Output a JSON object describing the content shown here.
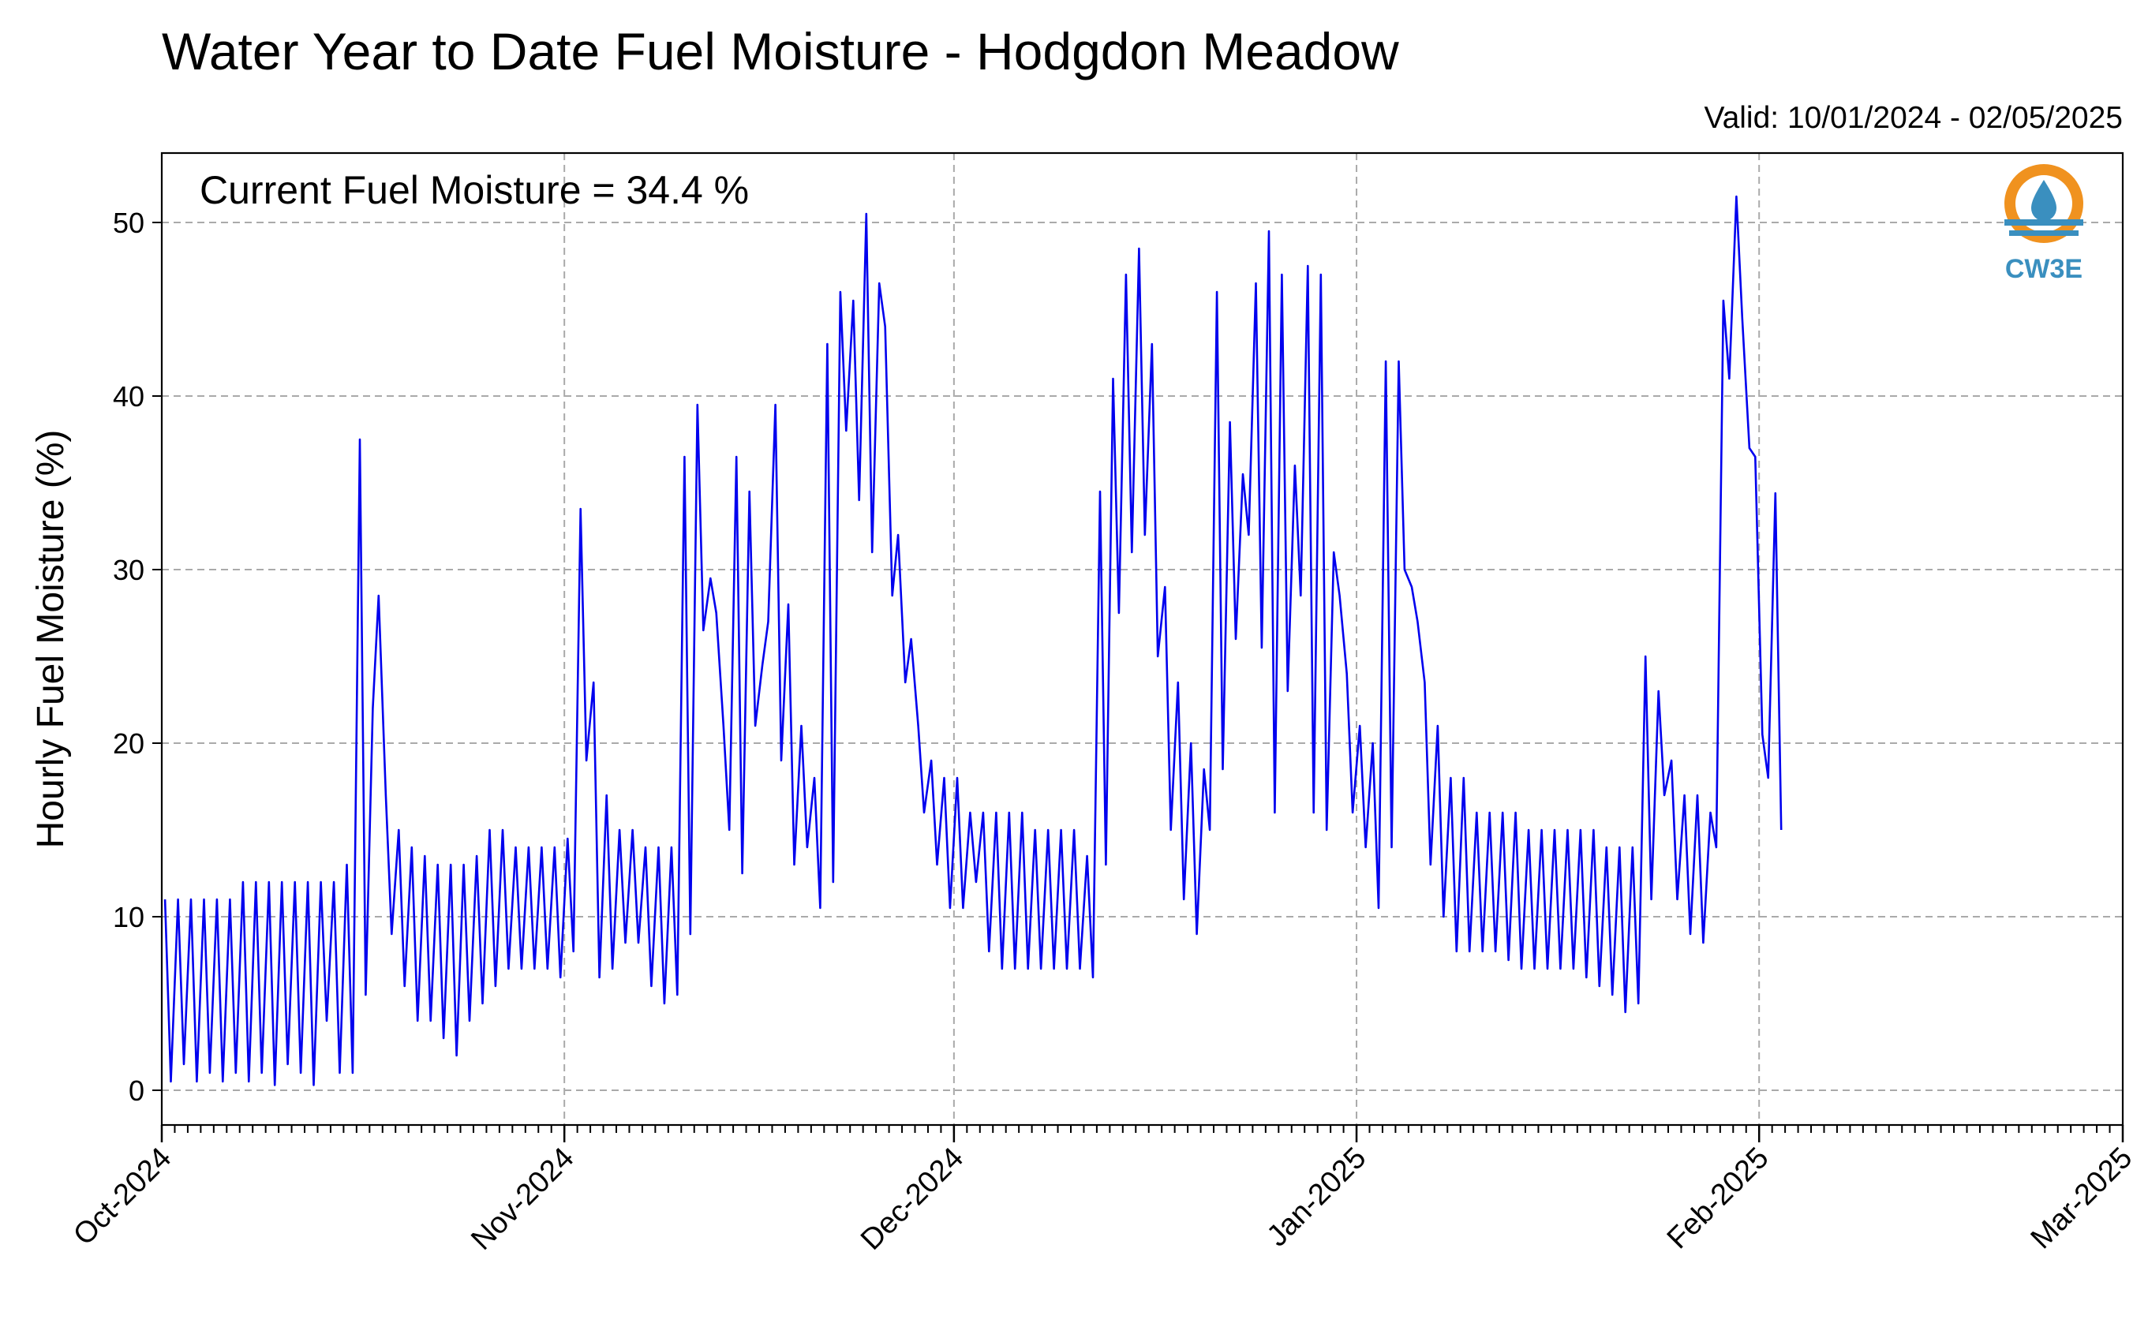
{
  "chart_data": {
    "type": "line",
    "title": "Water Year to Date Fuel Moisture - Hodgdon Meadow",
    "subtitle": "Valid: 10/01/2024 - 02/05/2025",
    "annotation": "Current Fuel Moisture = 34.4 %",
    "xlabel": "",
    "ylabel": "Hourly Fuel Moisture (%)",
    "ylim": [
      -2,
      54
    ],
    "yticks": [
      0,
      10,
      20,
      30,
      40,
      50
    ],
    "xlim": [
      "2024-10-01",
      "2025-03-01"
    ],
    "xtick_labels": [
      "Oct-2024",
      "Nov-2024",
      "Dec-2024",
      "Jan-2025",
      "Feb-2025",
      "Mar-2025"
    ],
    "xtick_dates": [
      "2024-10-01",
      "2024-11-01",
      "2024-12-01",
      "2025-01-01",
      "2025-02-01",
      "2025-03-01"
    ],
    "grid": true,
    "line_color": "#0000ee",
    "x": [
      "2024-10-01",
      "2024-10-02",
      "2024-10-03",
      "2024-10-04",
      "2024-10-05",
      "2024-10-06",
      "2024-10-07",
      "2024-10-08",
      "2024-10-09",
      "2024-10-10",
      "2024-10-11",
      "2024-10-12",
      "2024-10-13",
      "2024-10-14",
      "2024-10-15",
      "2024-10-16",
      "2024-10-17",
      "2024-10-18",
      "2024-10-19",
      "2024-10-20",
      "2024-10-21",
      "2024-10-22",
      "2024-10-23",
      "2024-10-24",
      "2024-10-25",
      "2024-10-26",
      "2024-10-27",
      "2024-10-28",
      "2024-10-29",
      "2024-10-30",
      "2024-10-31",
      "2024-11-01",
      "2024-11-02",
      "2024-11-03",
      "2024-11-04",
      "2024-11-05",
      "2024-11-06",
      "2024-11-07",
      "2024-11-08",
      "2024-11-09",
      "2024-11-10",
      "2024-11-11",
      "2024-11-12",
      "2024-11-13",
      "2024-11-14",
      "2024-11-15",
      "2024-11-16",
      "2024-11-17",
      "2024-11-18",
      "2024-11-19",
      "2024-11-20",
      "2024-11-21",
      "2024-11-22",
      "2024-11-23",
      "2024-11-24",
      "2024-11-25",
      "2024-11-26",
      "2024-11-27",
      "2024-11-28",
      "2024-11-29",
      "2024-11-30",
      "2024-12-01",
      "2024-12-02",
      "2024-12-03",
      "2024-12-04",
      "2024-12-05",
      "2024-12-06",
      "2024-12-07",
      "2024-12-08",
      "2024-12-09",
      "2024-12-10",
      "2024-12-11",
      "2024-12-12",
      "2024-12-13",
      "2024-12-14",
      "2024-12-15",
      "2024-12-16",
      "2024-12-17",
      "2024-12-18",
      "2024-12-19",
      "2024-12-20",
      "2024-12-21",
      "2024-12-22",
      "2024-12-23",
      "2024-12-24",
      "2024-12-25",
      "2024-12-26",
      "2024-12-27",
      "2024-12-28",
      "2024-12-29",
      "2024-12-30",
      "2024-12-31",
      "2025-01-01",
      "2025-01-02",
      "2025-01-03",
      "2025-01-04",
      "2025-01-05",
      "2025-01-06",
      "2025-01-07",
      "2025-01-08",
      "2025-01-09",
      "2025-01-10",
      "2025-01-11",
      "2025-01-12",
      "2025-01-13",
      "2025-01-14",
      "2025-01-15",
      "2025-01-16",
      "2025-01-17",
      "2025-01-18",
      "2025-01-19",
      "2025-01-20",
      "2025-01-21",
      "2025-01-22",
      "2025-01-23",
      "2025-01-24",
      "2025-01-25",
      "2025-01-26",
      "2025-01-27",
      "2025-01-28",
      "2025-01-29",
      "2025-01-30",
      "2025-01-31",
      "2025-02-01",
      "2025-02-02",
      "2025-02-03",
      "2025-02-04",
      "2025-02-05"
    ],
    "series": [
      {
        "values_min": [
          0.5,
          1.5,
          0.5,
          1.0,
          0.5,
          1.0,
          0.5,
          1.0,
          0.3,
          1.5,
          1.0,
          0.3,
          4.0,
          1.0,
          1.0,
          5.5,
          28.5,
          9.0,
          6.0,
          4.0,
          4.0,
          3.0,
          2.0,
          4.0,
          5.0,
          6.0,
          7.0,
          7.0,
          7.0,
          7.0,
          6.5,
          8.0,
          19.0,
          6.5,
          7.0,
          8.5,
          8.5,
          6.0,
          5.0,
          5.5,
          9.0,
          26.5,
          27.5,
          15.0,
          12.5,
          21.0,
          27.0,
          19.0,
          13.0,
          14.0,
          10.5,
          12.0,
          38.0,
          34.0,
          31.0,
          44.0,
          32.0,
          26.0,
          16.0,
          13.0,
          10.5,
          10.5,
          12.0,
          8.0,
          7.0,
          7.0,
          7.0,
          7.0,
          7.0,
          7.0,
          7.0,
          6.5,
          13.0,
          27.5,
          31.0,
          32.0,
          25.0,
          15.0,
          11.0,
          9.0,
          15.0,
          18.5,
          26.0,
          32.0,
          25.5,
          16.0,
          23.0,
          28.5,
          16.0,
          15.0,
          28.5,
          16.0,
          14.0,
          10.5,
          14.0,
          30.0,
          27.0,
          13.0,
          10.0,
          8.0,
          8.0,
          8.0,
          8.0,
          7.5,
          7.0,
          7.0,
          7.0,
          7.0,
          7.0,
          6.5,
          6.0,
          5.5,
          4.5,
          5.0,
          11.0,
          17.0,
          11.0,
          9.0,
          8.5,
          14.0,
          41.0,
          44.5,
          36.5,
          18.0,
          15.0
        ],
        "values_max": [
          11.0,
          11.0,
          11.0,
          11.0,
          11.0,
          11.0,
          12.0,
          12.0,
          12.0,
          12.0,
          12.0,
          12.0,
          12.0,
          12.0,
          13.0,
          37.5,
          22.0,
          17.0,
          15.0,
          14.0,
          13.5,
          13.0,
          13.0,
          13.0,
          13.5,
          15.0,
          15.0,
          14.0,
          14.0,
          14.0,
          14.0,
          14.5,
          33.5,
          23.5,
          17.0,
          15.0,
          15.0,
          14.0,
          14.0,
          14.0,
          36.5,
          39.5,
          29.5,
          21.0,
          36.5,
          34.5,
          24.5,
          39.5,
          28.0,
          21.0,
          18.0,
          43.0,
          46.0,
          45.5,
          50.5,
          46.5,
          28.5,
          23.5,
          21.0,
          19.0,
          18.0,
          18.0,
          16.0,
          16.0,
          16.0,
          16.0,
          16.0,
          15.0,
          15.0,
          15.0,
          15.0,
          13.5,
          34.5,
          41.0,
          47.0,
          48.5,
          43.0,
          29.0,
          23.5,
          20.0,
          18.5,
          46.0,
          38.5,
          35.5,
          46.5,
          49.5,
          47.0,
          36.0,
          47.5,
          47.0,
          31.0,
          24.0,
          21.0,
          20.0,
          42.0,
          42.0,
          29.0,
          23.5,
          21.0,
          18.0,
          18.0,
          16.0,
          16.0,
          16.0,
          16.0,
          15.0,
          15.0,
          15.0,
          15.0,
          15.0,
          15.0,
          14.0,
          14.0,
          14.0,
          25.0,
          23.0,
          19.0,
          17.0,
          17.0,
          16.0,
          45.5,
          51.5,
          37.0,
          20.5,
          34.4
        ]
      }
    ]
  },
  "logo": {
    "text": "CW3E",
    "ring_color": "#f0921f",
    "drop_color": "#3a8fbf",
    "text_color": "#3a8fbf"
  }
}
